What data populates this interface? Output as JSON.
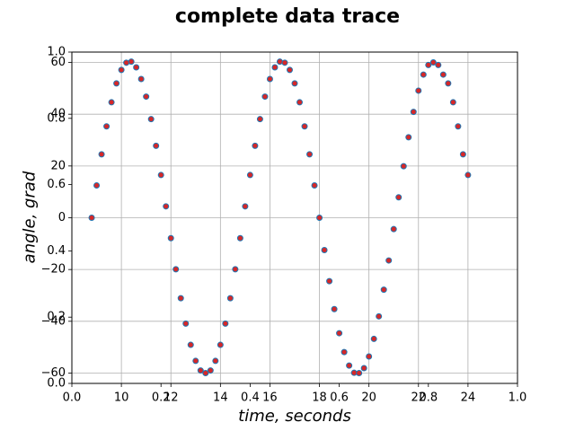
{
  "chart_data": {
    "type": "scatter",
    "title": "complete data trace",
    "xlabel": "time, seconds",
    "ylabel": "angle, grad",
    "xlim": [
      8,
      26
    ],
    "ylim": [
      -64,
      64
    ],
    "x_ticks": [
      10,
      12,
      14,
      16,
      18,
      20,
      22,
      24
    ],
    "y_ticks": [
      -60,
      -40,
      -20,
      0,
      20,
      40,
      60
    ],
    "overlay_axis_ticks": {
      "x": [
        "0.0",
        "0.2",
        "0.4",
        "0.6",
        "0.8",
        "1.0"
      ],
      "y": [
        "0.0",
        "0.2",
        "0.4",
        "0.6",
        "0.8",
        "1.0"
      ]
    },
    "grid": true,
    "marker": {
      "face_color": "#d62728",
      "edge_color": "#1f77b4"
    },
    "series": [
      {
        "x": [
          8.8,
          9.0,
          9.2,
          9.4,
          9.6,
          9.8,
          10.0,
          10.2,
          10.4,
          10.6,
          10.8,
          11.0,
          11.2,
          11.4,
          11.6,
          11.8,
          12.0,
          12.2,
          12.4,
          12.6,
          12.8,
          13.0,
          13.2,
          13.4,
          13.6,
          13.8,
          14.0,
          14.2,
          14.4,
          14.6,
          14.8,
          15.0,
          15.2,
          15.4,
          15.6,
          15.8,
          16.0,
          16.2,
          16.4,
          16.6,
          16.8,
          17.0,
          17.2,
          17.4,
          17.6,
          17.8,
          18.0,
          18.2,
          18.4,
          18.6,
          18.8,
          19.0,
          19.2,
          19.4,
          19.6,
          19.8,
          20.0,
          20.2,
          20.4,
          20.6,
          20.8,
          21.0,
          21.2,
          21.4,
          21.6,
          21.8,
          22.0,
          22.2,
          22.4,
          22.6,
          22.8,
          23.0,
          23.2,
          23.4,
          23.6,
          23.8,
          24.0
        ],
        "y": [
          0,
          12.5,
          24.5,
          35.3,
          44.6,
          51.9,
          57.1,
          59.9,
          60.3,
          58.1,
          53.6,
          46.8,
          38.1,
          27.8,
          16.5,
          4.4,
          -7.9,
          -19.9,
          -31.1,
          -40.9,
          -49.1,
          -55.3,
          -59.0,
          -60.0,
          -59.0,
          -55.3,
          -49.1,
          -40.9,
          -31.1,
          -19.9,
          -7.9,
          4.4,
          16.5,
          27.8,
          38.1,
          46.8,
          53.6,
          58.1,
          60.3,
          59.9,
          57.1,
          51.9,
          44.6,
          35.3,
          24.5,
          12.5,
          0,
          -12.5,
          -24.5,
          -35.3,
          -44.6,
          -51.9,
          -57.1,
          -59.9,
          -60.0,
          -58.1,
          -53.6,
          -46.8,
          -38.1,
          -27.8,
          -16.5,
          -4.4,
          7.9,
          19.9,
          31.1,
          40.9,
          49.1,
          55.3,
          59.0,
          60.0,
          59.0,
          55.3,
          51.9,
          44.6,
          35.3,
          24.5,
          16.5
        ]
      }
    ]
  }
}
